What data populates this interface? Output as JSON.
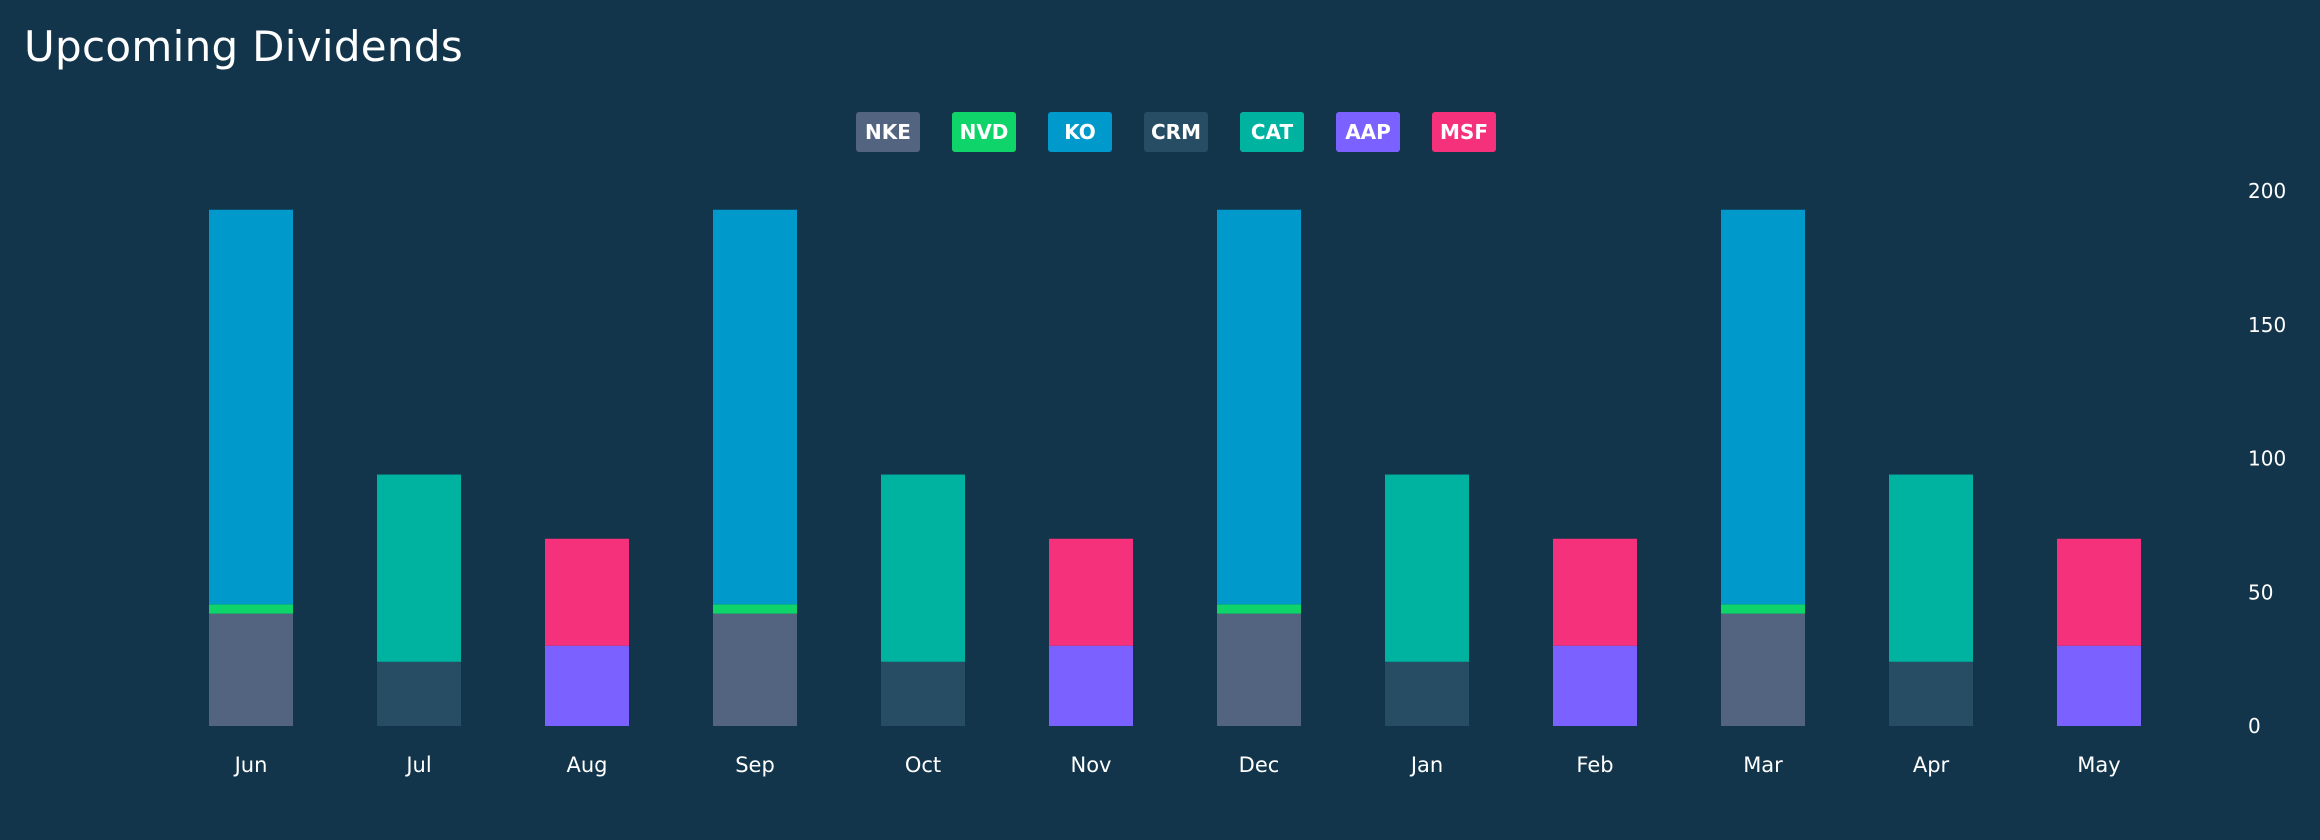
{
  "title": "Upcoming Dividends",
  "legend": [
    {
      "label": "NKE",
      "color": "#52647f"
    },
    {
      "label": "NVD",
      "color": "#0fd46a"
    },
    {
      "label": "KO",
      "color": "#0099cc"
    },
    {
      "label": "CRM",
      "color": "#274d65"
    },
    {
      "label": "CAT",
      "color": "#00b3a1"
    },
    {
      "label": "AAP",
      "color": "#7b61ff"
    },
    {
      "label": "MSF",
      "color": "#f5317c"
    }
  ],
  "chart_data": {
    "type": "bar",
    "stacked": true,
    "title": "Upcoming Dividends",
    "categories": [
      "Jun",
      "Jul",
      "Aug",
      "Sep",
      "Oct",
      "Nov",
      "Dec",
      "Jan",
      "Feb",
      "Mar",
      "Apr",
      "May"
    ],
    "y_ticks": [
      "0",
      "50",
      "100",
      "150",
      "200"
    ],
    "ylim": [
      0,
      200
    ],
    "y_axis_position": "right",
    "series": [
      {
        "name": "NKE",
        "color": "#52647f",
        "values": [
          42,
          0,
          0,
          42,
          0,
          0,
          42,
          0,
          0,
          42,
          0,
          0
        ]
      },
      {
        "name": "NVD",
        "color": "#0fd46a",
        "values": [
          3.5,
          0,
          0,
          3.5,
          0,
          0,
          3.5,
          0,
          0,
          3.5,
          0,
          0
        ]
      },
      {
        "name": "KO",
        "color": "#0099cc",
        "values": [
          147.5,
          0,
          0,
          147.5,
          0,
          0,
          147.5,
          0,
          0,
          147.5,
          0,
          0
        ]
      },
      {
        "name": "CRM",
        "color": "#274d65",
        "values": [
          0,
          24,
          0,
          0,
          24,
          0,
          0,
          24,
          0,
          0,
          24,
          0
        ]
      },
      {
        "name": "CAT",
        "color": "#00b3a1",
        "values": [
          0,
          70,
          0,
          0,
          70,
          0,
          0,
          70,
          0,
          0,
          70,
          0
        ]
      },
      {
        "name": "AAP",
        "color": "#7b61ff",
        "values": [
          0,
          0,
          30,
          0,
          0,
          30,
          0,
          0,
          30,
          0,
          0,
          30
        ]
      },
      {
        "name": "MSF",
        "color": "#f5317c",
        "values": [
          0,
          0,
          40,
          0,
          0,
          40,
          0,
          0,
          40,
          0,
          0,
          40
        ]
      }
    ]
  }
}
